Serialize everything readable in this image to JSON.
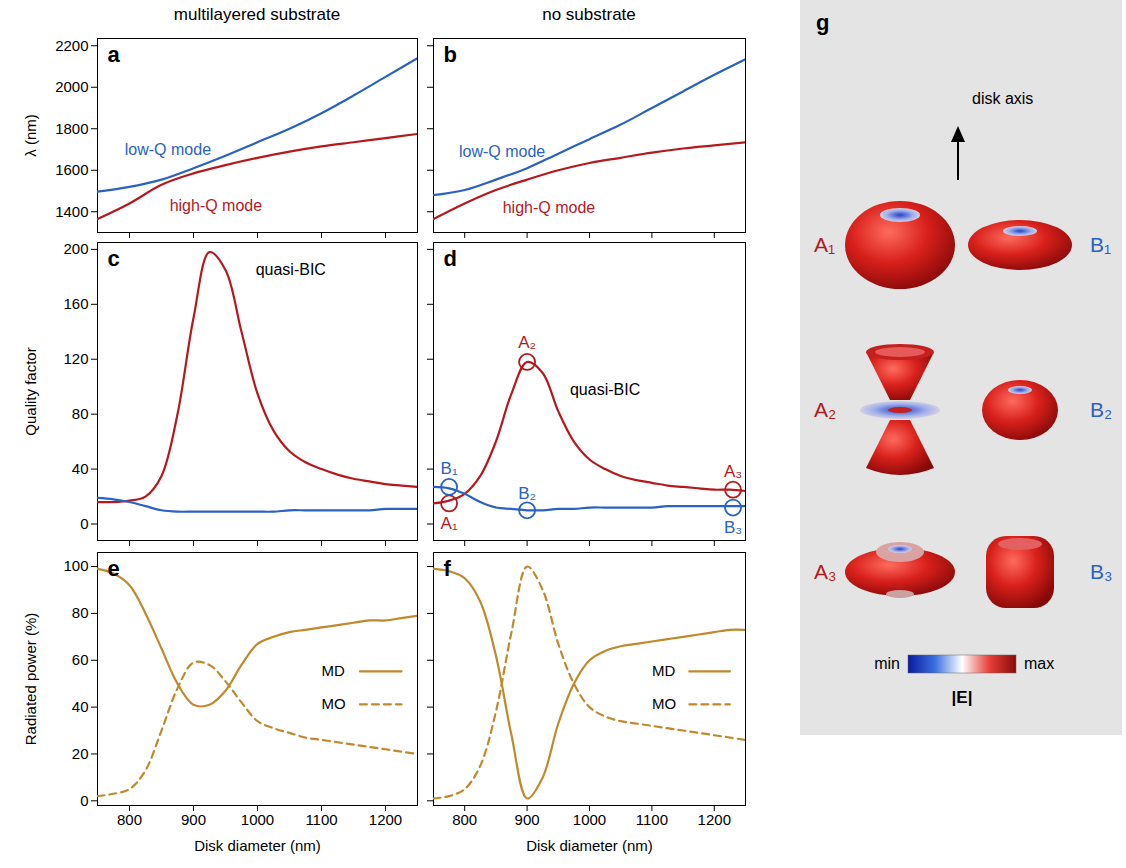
{
  "chart_data": [
    {
      "panel": "a",
      "type": "line",
      "title": "multilayered substrate",
      "x": [
        750,
        800,
        850,
        900,
        950,
        1000,
        1050,
        1100,
        1150,
        1200,
        1250
      ],
      "series": [
        {
          "color": "#2a62c3",
          "values": [
            1497,
            1520,
            1555,
            1610,
            1670,
            1735,
            1800,
            1875,
            1960,
            2050,
            2140
          ]
        },
        {
          "color": "#b5191e",
          "values": [
            1365,
            1440,
            1530,
            1585,
            1625,
            1660,
            1690,
            1715,
            1735,
            1755,
            1775
          ]
        }
      ],
      "annotations": [
        {
          "text": "low-Q mode",
          "x": 860,
          "y": 1700,
          "color": "#2a62c3"
        },
        {
          "text": "high-Q mode",
          "x": 935,
          "y": 1430,
          "color": "#b5191e"
        }
      ],
      "xlim": [
        750,
        1250
      ],
      "xticks": [
        800,
        900,
        1000,
        1100,
        1200
      ],
      "ylim": [
        1300,
        2235
      ],
      "yticks": [
        1400,
        1600,
        1800,
        2000,
        2200
      ],
      "ylabel": "λ (nm)",
      "tick_labels": "y"
    },
    {
      "panel": "b",
      "type": "line",
      "title": "no substrate",
      "x": [
        750,
        800,
        850,
        900,
        950,
        1000,
        1050,
        1100,
        1150,
        1200,
        1250
      ],
      "series": [
        {
          "color": "#2a62c3",
          "values": [
            1480,
            1505,
            1555,
            1610,
            1680,
            1750,
            1820,
            1900,
            1980,
            2060,
            2135
          ]
        },
        {
          "color": "#b5191e",
          "values": [
            1365,
            1440,
            1505,
            1555,
            1600,
            1635,
            1660,
            1685,
            1705,
            1720,
            1735
          ]
        }
      ],
      "annotations": [
        {
          "text": "low-Q mode",
          "x": 860,
          "y": 1690,
          "color": "#2a62c3"
        },
        {
          "text": "high-Q mode",
          "x": 935,
          "y": 1420,
          "color": "#b5191e"
        }
      ],
      "xlim": [
        750,
        1250
      ],
      "xticks": [
        800,
        900,
        1000,
        1100,
        1200
      ],
      "ylim": [
        1300,
        2235
      ],
      "yticks": [
        1400,
        1600,
        1800,
        2000,
        2200
      ],
      "tick_labels": false
    },
    {
      "panel": "c",
      "type": "line",
      "x": [
        750,
        775,
        800,
        825,
        850,
        875,
        900,
        925,
        950,
        975,
        1000,
        1025,
        1050,
        1075,
        1100,
        1125,
        1150,
        1175,
        1200,
        1225,
        1250
      ],
      "series": [
        {
          "color": "#b5191e",
          "values": [
            16,
            16,
            17,
            20,
            35,
            80,
            150,
            198,
            185,
            140,
            95,
            68,
            53,
            45,
            40,
            36,
            33,
            31,
            29,
            28,
            27
          ]
        },
        {
          "color": "#2a62c3",
          "values": [
            19,
            18,
            16,
            13,
            10,
            9,
            9,
            9,
            9,
            9,
            9,
            9,
            10,
            10,
            10,
            10,
            10,
            10,
            11,
            11,
            11
          ]
        }
      ],
      "annotations": [
        {
          "text": "quasi-BIC",
          "x": 1052,
          "y": 185,
          "color": "#000000"
        }
      ],
      "xlim": [
        750,
        1250
      ],
      "xticks": [
        800,
        900,
        1000,
        1100,
        1200
      ],
      "ylim": [
        -12,
        205
      ],
      "yticks": [
        0,
        40,
        80,
        120,
        160,
        200
      ],
      "ylabel": "Quality factor",
      "tick_labels": "y"
    },
    {
      "panel": "d",
      "type": "line",
      "x": [
        750,
        775,
        800,
        825,
        850,
        875,
        900,
        925,
        950,
        975,
        1000,
        1025,
        1050,
        1075,
        1100,
        1125,
        1150,
        1175,
        1200,
        1225,
        1250
      ],
      "series": [
        {
          "color": "#b5191e",
          "values": [
            15,
            17,
            22,
            35,
            60,
            95,
            118,
            110,
            82,
            60,
            47,
            40,
            35,
            32,
            30,
            28,
            27,
            26,
            25,
            25,
            24
          ]
        },
        {
          "color": "#2a62c3",
          "values": [
            27,
            26,
            22,
            16,
            12,
            11,
            10,
            10,
            11,
            11,
            12,
            12,
            12,
            12,
            12,
            13,
            13,
            13,
            13,
            13,
            13
          ]
        }
      ],
      "annotations": [
        {
          "text": "quasi-BIC",
          "x": 1025,
          "y": 98,
          "color": "#000000"
        }
      ],
      "marker": "circle",
      "points": [
        {
          "label": "A₁",
          "x": 775,
          "y": 15,
          "color": "#b5191e"
        },
        {
          "label": "B₁",
          "x": 775,
          "y": 27,
          "color": "#2a62c3"
        },
        {
          "label": "A₂",
          "x": 900,
          "y": 118,
          "color": "#b5191e"
        },
        {
          "label": "B₂",
          "x": 900,
          "y": 10,
          "color": "#2a62c3"
        },
        {
          "label": "A₃",
          "x": 1230,
          "y": 25,
          "color": "#b5191e"
        },
        {
          "label": "B₃",
          "x": 1230,
          "y": 12,
          "color": "#2a62c3"
        }
      ],
      "xlim": [
        750,
        1250
      ],
      "xticks": [
        800,
        900,
        1000,
        1100,
        1200
      ],
      "ylim": [
        -12,
        205
      ],
      "yticks": [
        0,
        40,
        80,
        120,
        160,
        200
      ],
      "tick_labels": false
    },
    {
      "panel": "e",
      "type": "line",
      "x": [
        750,
        775,
        800,
        825,
        850,
        875,
        900,
        925,
        950,
        975,
        1000,
        1025,
        1050,
        1075,
        1100,
        1125,
        1150,
        1175,
        1200,
        1225,
        1250
      ],
      "series": [
        {
          "name": "MD",
          "color": "#c2882c",
          "line_style": "solid",
          "values": [
            99,
            97,
            92,
            80,
            65,
            50,
            41,
            41,
            47,
            58,
            67,
            70,
            72,
            73,
            74,
            75,
            76,
            77,
            77,
            78,
            79
          ]
        },
        {
          "name": "MO",
          "color": "#c2882c",
          "line_style": "dashed",
          "values": [
            2,
            3,
            5,
            13,
            30,
            48,
            59,
            58,
            51,
            42,
            34,
            31,
            29,
            27,
            26,
            25,
            24,
            23,
            22,
            21,
            20
          ]
        }
      ],
      "legend": "right",
      "xlim": [
        750,
        1250
      ],
      "xticks": [
        800,
        900,
        1000,
        1100,
        1200
      ],
      "ylim": [
        -2,
        106
      ],
      "yticks": [
        0,
        20,
        40,
        60,
        80,
        100
      ],
      "xlabel": "Disk diameter (nm)",
      "ylabel": "Radiated power (%)"
    },
    {
      "panel": "f",
      "type": "line",
      "x": [
        750,
        775,
        800,
        825,
        850,
        875,
        900,
        925,
        950,
        975,
        1000,
        1025,
        1050,
        1075,
        1100,
        1125,
        1150,
        1175,
        1200,
        1225,
        1250
      ],
      "series": [
        {
          "name": "MD",
          "color": "#c2882c",
          "line_style": "solid",
          "values": [
            99,
            98,
            95,
            85,
            62,
            28,
            1,
            10,
            33,
            50,
            60,
            64,
            66,
            67,
            68,
            69,
            70,
            71,
            72,
            73,
            73
          ]
        },
        {
          "name": "MO",
          "color": "#c2882c",
          "line_style": "dashed",
          "values": [
            1,
            2,
            5,
            15,
            38,
            72,
            100,
            90,
            67,
            50,
            40,
            36,
            34,
            33,
            32,
            31,
            30,
            29,
            28,
            27,
            26
          ]
        }
      ],
      "legend": "right",
      "xlim": [
        750,
        1250
      ],
      "xticks": [
        800,
        900,
        1000,
        1100,
        1200
      ],
      "ylim": [
        -2,
        106
      ],
      "yticks": [
        0,
        20,
        40,
        60,
        80,
        100
      ],
      "xlabel": "Disk diameter (nm)",
      "tick_labels": "x"
    }
  ],
  "field_panel": {
    "panel": "g",
    "axis_label": "disk axis",
    "modes": [
      {
        "label": "A₁",
        "color": "#b5191e"
      },
      {
        "label": "B₁",
        "color": "#2a62c3"
      },
      {
        "label": "A₂",
        "color": "#b5191e"
      },
      {
        "label": "B₂",
        "color": "#2a62c3"
      },
      {
        "label": "A₃",
        "color": "#b5191e"
      },
      {
        "label": "B₃",
        "color": "#2a62c3"
      }
    ],
    "colorbar": {
      "title": "|E|",
      "min_label": "min",
      "max_label": "max",
      "colors": [
        "#0a1aa0",
        "#3d6fe0",
        "#ffffff",
        "#e8403a",
        "#8a0a0a"
      ]
    }
  }
}
